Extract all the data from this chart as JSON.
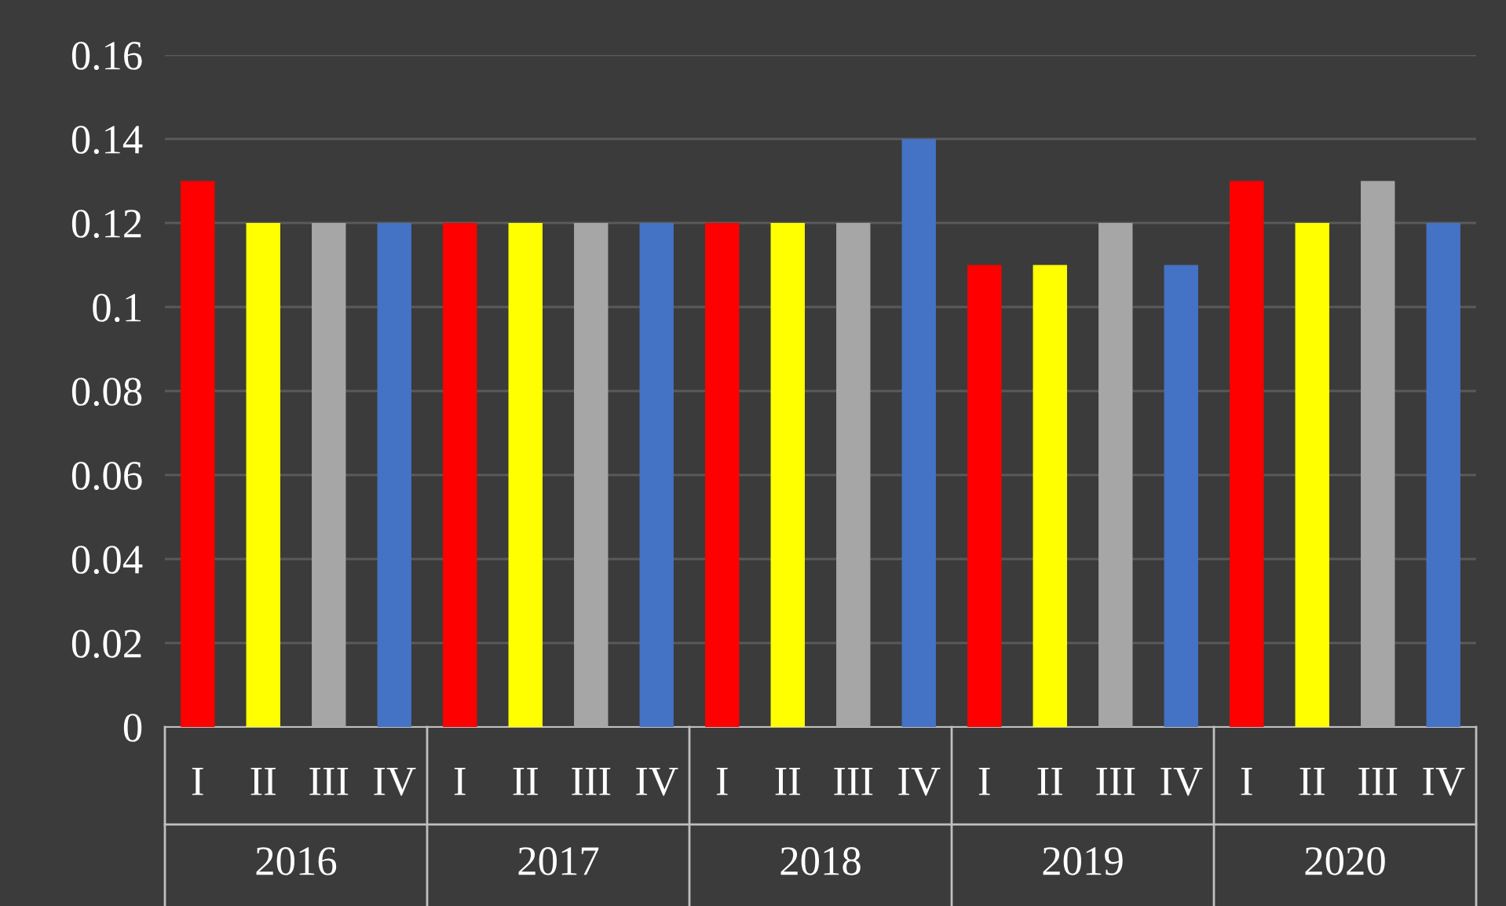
{
  "chart_data": {
    "type": "bar",
    "categories": [
      "I",
      "II",
      "III",
      "IV",
      "I",
      "II",
      "III",
      "IV",
      "I",
      "II",
      "III",
      "IV",
      "I",
      "II",
      "III",
      "IV",
      "I",
      "II",
      "III",
      "IV"
    ],
    "values": [
      0.13,
      0.12,
      0.12,
      0.12,
      0.12,
      0.12,
      0.12,
      0.12,
      0.12,
      0.12,
      0.12,
      0.14,
      0.11,
      0.11,
      0.12,
      0.11,
      0.13,
      0.12,
      0.13,
      0.12
    ],
    "colors": [
      "#ff0000",
      "#ffff00",
      "#a6a6a6",
      "#4472c4",
      "#ff0000",
      "#ffff00",
      "#a6a6a6",
      "#4472c4",
      "#ff0000",
      "#ffff00",
      "#a6a6a6",
      "#4472c4",
      "#ff0000",
      "#ffff00",
      "#a6a6a6",
      "#4472c4",
      "#ff0000",
      "#ffff00",
      "#a6a6a6",
      "#4472c4"
    ],
    "annotations": [
      "2016",
      "2017",
      "2018",
      "2019",
      "2020"
    ],
    "ylim": [
      0,
      0.16
    ],
    "yticks": [
      0,
      0.02,
      0.04,
      0.06,
      0.08,
      0.1,
      0.12,
      0.14,
      0.16
    ],
    "grid": "y",
    "legend": false
  }
}
